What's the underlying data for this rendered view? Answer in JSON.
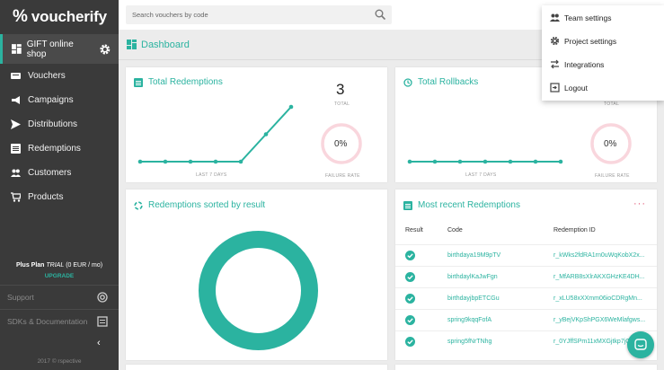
{
  "app": {
    "logo_mark": "%",
    "logo_text": "voucherify"
  },
  "sidebar": {
    "shop": "GIFT online shop",
    "items": [
      {
        "label": "Vouchers",
        "icon": "ticket-icon"
      },
      {
        "label": "Campaigns",
        "icon": "megaphone-icon"
      },
      {
        "label": "Distributions",
        "icon": "send-icon"
      },
      {
        "label": "Redemptions",
        "icon": "list-icon"
      },
      {
        "label": "Customers",
        "icon": "people-icon"
      },
      {
        "label": "Products",
        "icon": "cart-icon"
      }
    ],
    "plan_name": "Plus Plan",
    "plan_status": "TRIAL",
    "plan_price": "(0 EUR / mo)",
    "upgrade": "UPGRADE",
    "support": "Support",
    "docs": "SDKs & Documentation",
    "copyright": "2017 © rspective"
  },
  "search": {
    "placeholder": "Search vouchers by code"
  },
  "subheader": {
    "title": "Dashboard"
  },
  "total_redemptions": {
    "title": "Total Redemptions",
    "count": "3",
    "count_label": "TOTAL",
    "period": "LAST 7 DAYS",
    "failure_rate": "0%",
    "failure_label": "FAILURE RATE",
    "chart_data": {
      "type": "line",
      "values": [
        0,
        0,
        0,
        0,
        0,
        1,
        2
      ]
    }
  },
  "total_rollbacks": {
    "title": "Total Rollbacks",
    "count_label": "TOTAL",
    "period": "LAST 7 DAYS",
    "failure_rate": "0%",
    "failure_label": "FAILURE RATE",
    "chart_data": {
      "type": "line",
      "values": [
        0,
        0,
        0,
        0,
        0,
        0,
        0
      ]
    }
  },
  "sorted_by_result": {
    "title": "Redemptions sorted by result"
  },
  "recent": {
    "title": "Most recent Redemptions",
    "col_result": "Result",
    "col_code": "Code",
    "col_id": "Redemption ID",
    "rows": [
      {
        "code": "birthdaya19M9pTV",
        "id": "r_kWks2fdRA1rn0uWqKobX2x..."
      },
      {
        "code": "birthdaylKaJwFgn",
        "id": "r_MfARB8sXlrAKXGHzKE4DH..."
      },
      {
        "code": "birthdayjbpETCGu",
        "id": "r_xLU58xXXmm06ioCDRgMn..."
      },
      {
        "code": "spring9kqqFofA",
        "id": "r_yBejVKpShPGX6WeMlafgws..."
      },
      {
        "code": "spring5fNrTNhg",
        "id": "r_0YJffSPm11xMXGjtkp7jGg..."
      }
    ]
  },
  "menu": {
    "items": [
      {
        "label": "Team settings"
      },
      {
        "label": "Project settings"
      },
      {
        "label": "Integrations"
      },
      {
        "label": "Logout"
      }
    ]
  },
  "colors": {
    "accent": "#2bb3a0",
    "sidebar": "#3a3a3a",
    "ring": "#f9d6dd"
  }
}
